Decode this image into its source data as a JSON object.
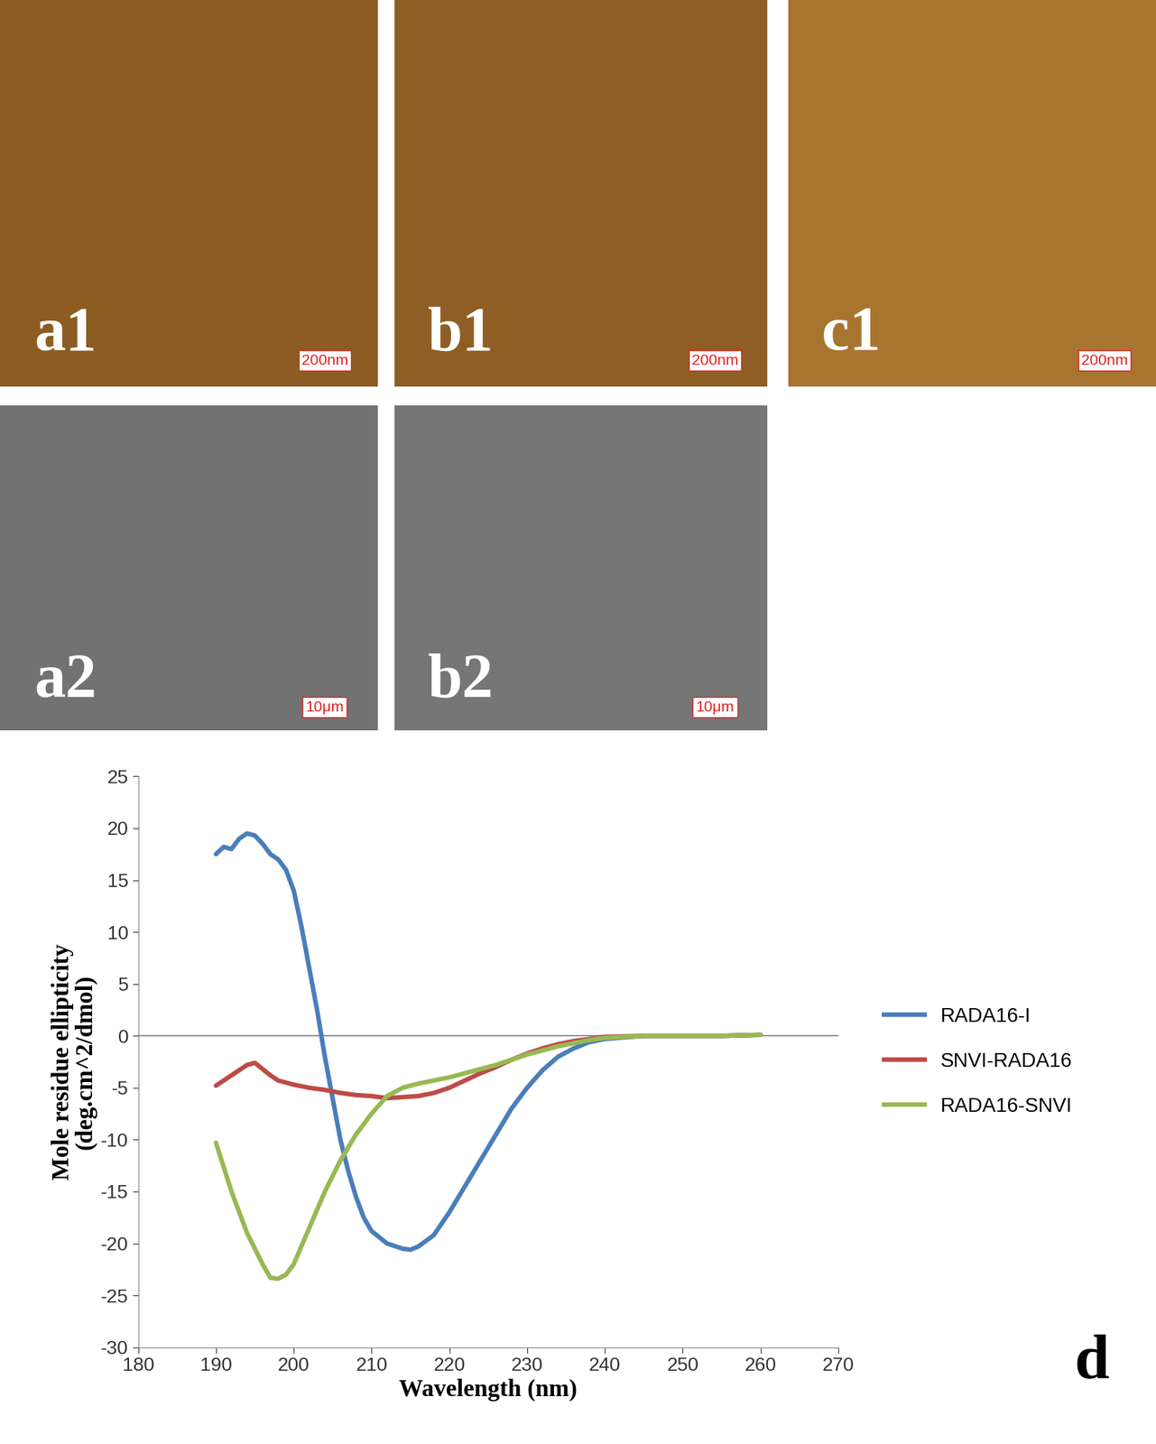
{
  "panels": [
    {
      "label": "a1",
      "scale_bar": "200nm"
    },
    {
      "label": "b1",
      "scale_bar": "200nm"
    },
    {
      "label": "c1",
      "scale_bar": "200nm"
    },
    {
      "label": "a2",
      "scale_bar": "10μm"
    },
    {
      "label": "b2",
      "scale_bar": "10μm"
    }
  ],
  "chart_data": {
    "type": "line",
    "panel_label": "d",
    "x_label": "Wavelength (nm)",
    "y_label": "Mole residue ellipticity\n(deg.cm^2/dmol)",
    "xlim": [
      180,
      270
    ],
    "xticks": [
      180,
      190,
      200,
      210,
      220,
      230,
      240,
      250,
      260,
      270
    ],
    "ylim": [
      -30,
      25
    ],
    "yticks": [
      -30,
      -25,
      -20,
      -15,
      -10,
      -5,
      0,
      5,
      10,
      15,
      20,
      25
    ],
    "reference_line": 0,
    "grid": false,
    "legend": "right",
    "series": [
      {
        "name": "RADA16-I",
        "color": "#4a7ebb",
        "x": [
          190,
          191,
          192,
          193,
          194,
          195,
          196,
          197,
          198,
          199,
          200,
          201,
          202,
          203,
          204,
          205,
          206,
          207,
          208,
          209,
          210,
          212,
          214,
          215,
          216,
          218,
          220,
          222,
          224,
          226,
          228,
          230,
          232,
          234,
          236,
          238,
          240,
          245,
          250,
          255,
          260
        ],
        "values": [
          17.5,
          18.2,
          18.0,
          19.0,
          19.5,
          19.3,
          18.5,
          17.5,
          17.0,
          16.0,
          14.0,
          10.5,
          6.5,
          2.5,
          -2.0,
          -6.0,
          -10.0,
          -13.0,
          -15.5,
          -17.5,
          -18.8,
          -20.0,
          -20.5,
          -20.6,
          -20.3,
          -19.2,
          -17.0,
          -14.5,
          -12.0,
          -9.5,
          -7.0,
          -5.0,
          -3.3,
          -2.0,
          -1.2,
          -0.6,
          -0.3,
          0.0,
          0.0,
          0.0,
          0.1
        ]
      },
      {
        "name": "SNVI-RADA16",
        "color": "#be4b48",
        "x": [
          190,
          191,
          192,
          193,
          194,
          195,
          196,
          197,
          198,
          200,
          202,
          204,
          206,
          208,
          210,
          212,
          214,
          216,
          218,
          220,
          222,
          224,
          226,
          228,
          230,
          232,
          234,
          236,
          238,
          240,
          245,
          250,
          255,
          260
        ],
        "values": [
          -4.8,
          -4.3,
          -3.8,
          -3.3,
          -2.8,
          -2.6,
          -3.2,
          -3.8,
          -4.3,
          -4.7,
          -5.0,
          -5.2,
          -5.5,
          -5.7,
          -5.8,
          -6.0,
          -5.9,
          -5.8,
          -5.5,
          -5.0,
          -4.3,
          -3.6,
          -3.0,
          -2.3,
          -1.7,
          -1.2,
          -0.8,
          -0.5,
          -0.3,
          -0.1,
          0.0,
          0.0,
          0.0,
          0.1
        ]
      },
      {
        "name": "RADA16-SNVI",
        "color": "#98b954",
        "x": [
          190,
          192,
          194,
          196,
          197,
          198,
          199,
          200,
          202,
          204,
          206,
          208,
          210,
          212,
          214,
          216,
          218,
          220,
          222,
          224,
          226,
          228,
          230,
          232,
          234,
          236,
          238,
          240,
          245,
          250,
          255,
          260
        ],
        "values": [
          -10.3,
          -15.0,
          -19.0,
          -22.0,
          -23.3,
          -23.4,
          -23.0,
          -22.0,
          -18.5,
          -15.0,
          -12.0,
          -9.5,
          -7.5,
          -5.8,
          -5.0,
          -4.6,
          -4.3,
          -4.0,
          -3.6,
          -3.2,
          -2.8,
          -2.3,
          -1.8,
          -1.4,
          -1.0,
          -0.7,
          -0.4,
          -0.2,
          0.0,
          0.0,
          0.0,
          0.1
        ]
      }
    ]
  }
}
